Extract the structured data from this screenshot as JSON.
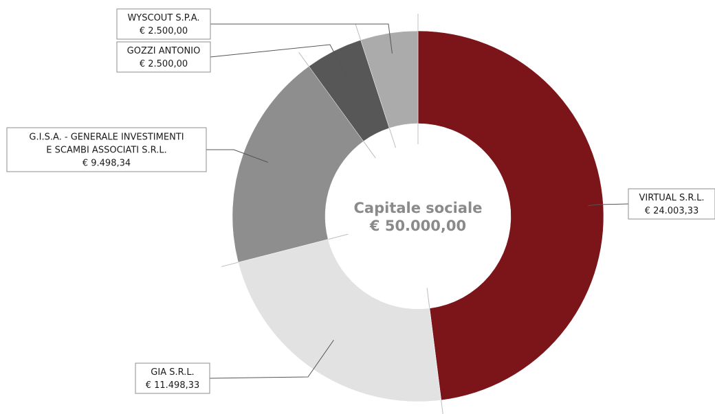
{
  "chart_data": {
    "type": "pie",
    "donut": true,
    "title": "",
    "center_label": {
      "line1": "Capitale sociale",
      "line2": "€ 50.000,00"
    },
    "total": 50000.0,
    "slices": [
      {
        "label": [
          "VIRTUAL  S.R.L."
        ],
        "value_text": "€ 24.003,33",
        "value": 24003.33,
        "color": "#7b1519"
      },
      {
        "label": [
          "GIA S.R.L."
        ],
        "value_text": "€ 11.498,33",
        "value": 11498.33,
        "color": "#e2e2e2"
      },
      {
        "label": [
          "G.I.S.A. - GENERALE INVESTIMENTI",
          "E SCAMBI ASSOCIATI S.R.L."
        ],
        "value_text": "€ 9.498,34",
        "value": 9498.34,
        "color": "#8e8e8e"
      },
      {
        "label": [
          "GOZZI ANTONIO"
        ],
        "value_text": "€ 2.500,00",
        "value": 2500.0,
        "color": "#575757"
      },
      {
        "label": [
          "WYSCOUT S.P.A."
        ],
        "value_text": "€ 2.500,00",
        "value": 2500.0,
        "color": "#ababab"
      }
    ],
    "start_angle_deg": 0,
    "direction": "clockwise",
    "legend": "none"
  }
}
